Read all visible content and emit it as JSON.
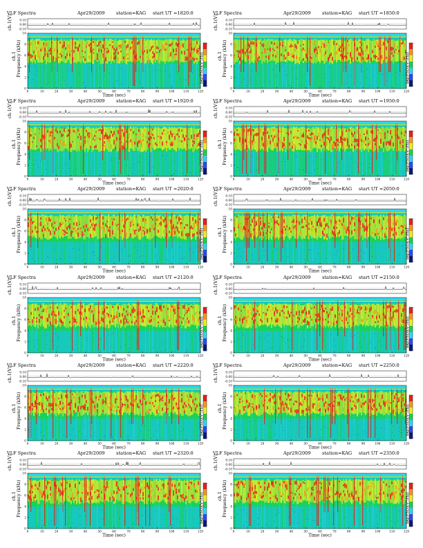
{
  "figure": {
    "type": "VLF spectrogram grid",
    "common": {
      "instrument_label": "VLF Spectra",
      "date_label": "Apr29/2009",
      "station_label": "station=KAG",
      "voltage_axis_label": "ch.1(V)",
      "voltage_ticks": [
        "0.10",
        "0.00",
        "-0.10"
      ],
      "freq_axis_label_a": "ch.1",
      "freq_axis_label_b": "Frequency (kHz)",
      "freq_ticks": [
        "10",
        "8",
        "6",
        "4",
        "2",
        "0"
      ],
      "time_axis_label": "Time (sec)",
      "time_ticks": [
        "0",
        "10",
        "20",
        "30",
        "40",
        "50",
        "60",
        "70",
        "80",
        "90",
        "100",
        "110",
        "120"
      ],
      "colorbar_label": "log(PSD)(V²/Hz)",
      "colorbar_top_tick": "-",
      "colorbar_bottom_tick": "-",
      "colors": {
        "background": "#18c8bc",
        "cyan": "#2ed8f0",
        "green": "#1cd24a",
        "yellow": "#f0ee28",
        "orange": "#f29a1c",
        "red": "#e8201c",
        "blue_speck": "#2a4cf4"
      }
    },
    "panels": [
      {
        "start": "start  UT =1820:0"
      },
      {
        "start": "start  UT =1850:0"
      },
      {
        "start": "start  UT =1920:0"
      },
      {
        "start": "start  UT =1950:0"
      },
      {
        "start": "start  UT =2020:0"
      },
      {
        "start": "start  UT =2050:0"
      },
      {
        "start": "start  UT =2120:0"
      },
      {
        "start": "start  UT =2150:0"
      },
      {
        "start": "start  UT =2220:0"
      },
      {
        "start": "start  UT =2250:0"
      },
      {
        "start": "start  UT =2320:0"
      },
      {
        "start": "start  UT =2350:0"
      }
    ]
  },
  "chart_data": {
    "type": "heatmap",
    "description_fields": {
      "x_axis": "Time (sec)",
      "y_axis": "Frequency (kHz)",
      "xlim": [
        0,
        120
      ],
      "ylim": [
        0,
        10
      ],
      "voltage_ylim": [
        -0.1,
        0.1
      ],
      "colorbar": "log(PSD)(V²/Hz)"
    },
    "panels_start_ut": [
      "1820:0",
      "1850:0",
      "1920:0",
      "1950:0",
      "2020:0",
      "2050:0",
      "2120:0",
      "2150:0",
      "2220:0",
      "2250:0",
      "2320:0",
      "2350:0"
    ],
    "intense_band_khz": [
      5,
      9
    ]
  }
}
